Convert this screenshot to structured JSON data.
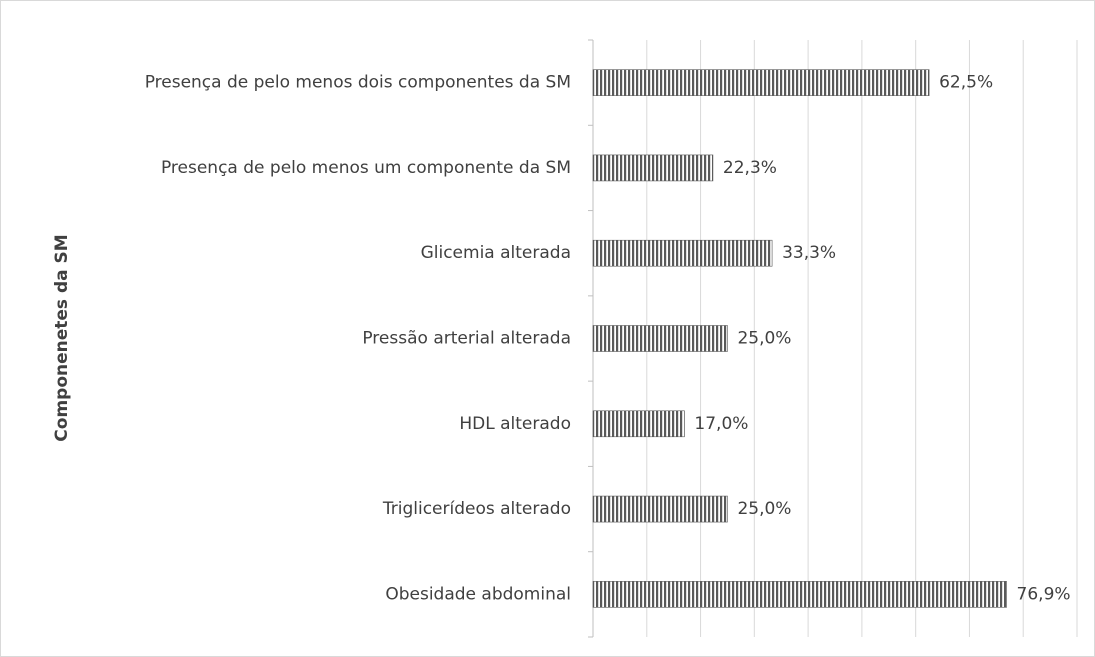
{
  "chart_data": {
    "type": "barh",
    "y_label": "Componenetes da SM",
    "categories": [
      "Presença de pelo menos dois componentes da SM",
      "Presença de pelo menos um componente da SM",
      "Glicemia alterada",
      "Pressão arterial alterada",
      "HDL alterado",
      "Triglicerídeos alterado",
      "Obesidade abdominal"
    ],
    "values": [
      62.5,
      22.3,
      33.3,
      25.0,
      17.0,
      25.0,
      76.9
    ],
    "value_labels": [
      "62,5%",
      "22,3%",
      "33,3%",
      "25,0%",
      "17,0%",
      "25,0%",
      "76,9%"
    ],
    "color": "#595959",
    "xlim": [
      0,
      90
    ],
    "xticks": [
      0,
      10,
      20,
      30,
      40,
      50,
      60,
      70,
      80,
      90
    ],
    "grid": true
  }
}
